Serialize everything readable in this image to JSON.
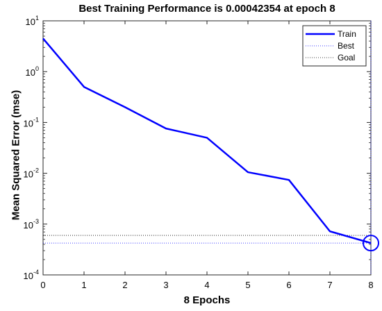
{
  "chart_data": {
    "type": "line",
    "title": "Best Training Performance is 0.00042354 at epoch 8",
    "xlabel": "8 Epochs",
    "ylabel": "Mean Squared Error  (mse)",
    "x": [
      0,
      1,
      2,
      3,
      4,
      5,
      6,
      7,
      8
    ],
    "xlim": [
      0,
      8
    ],
    "ylim": [
      0.0001,
      10
    ],
    "yscale": "log",
    "x_ticks": [
      "0",
      "1",
      "2",
      "3",
      "4",
      "5",
      "6",
      "7",
      "8"
    ],
    "y_ticks": [
      {
        "base": "10",
        "exp": "1"
      },
      {
        "base": "10",
        "exp": "0"
      },
      {
        "base": "10",
        "exp": "-1"
      },
      {
        "base": "10",
        "exp": "-2"
      },
      {
        "base": "10",
        "exp": "-3"
      },
      {
        "base": "10",
        "exp": "-4"
      }
    ],
    "y_tick_values": [
      10,
      1,
      0.1,
      0.01,
      0.001,
      0.0001
    ],
    "series": [
      {
        "name": "Train",
        "color": "#0000ff",
        "style": "solid",
        "values": [
          4.5,
          0.5,
          0.2,
          0.076,
          0.05,
          0.0105,
          0.0074,
          0.00072,
          0.00042354
        ]
      }
    ],
    "best": {
      "name": "Best",
      "epoch": 8,
      "value": 0.00042354,
      "color": "#0000ff",
      "style": "dotted"
    },
    "goal": {
      "name": "Goal",
      "value": 0.0006,
      "color": "#000000",
      "style": "dotted"
    },
    "legend_position": "top-right",
    "grid": false
  }
}
